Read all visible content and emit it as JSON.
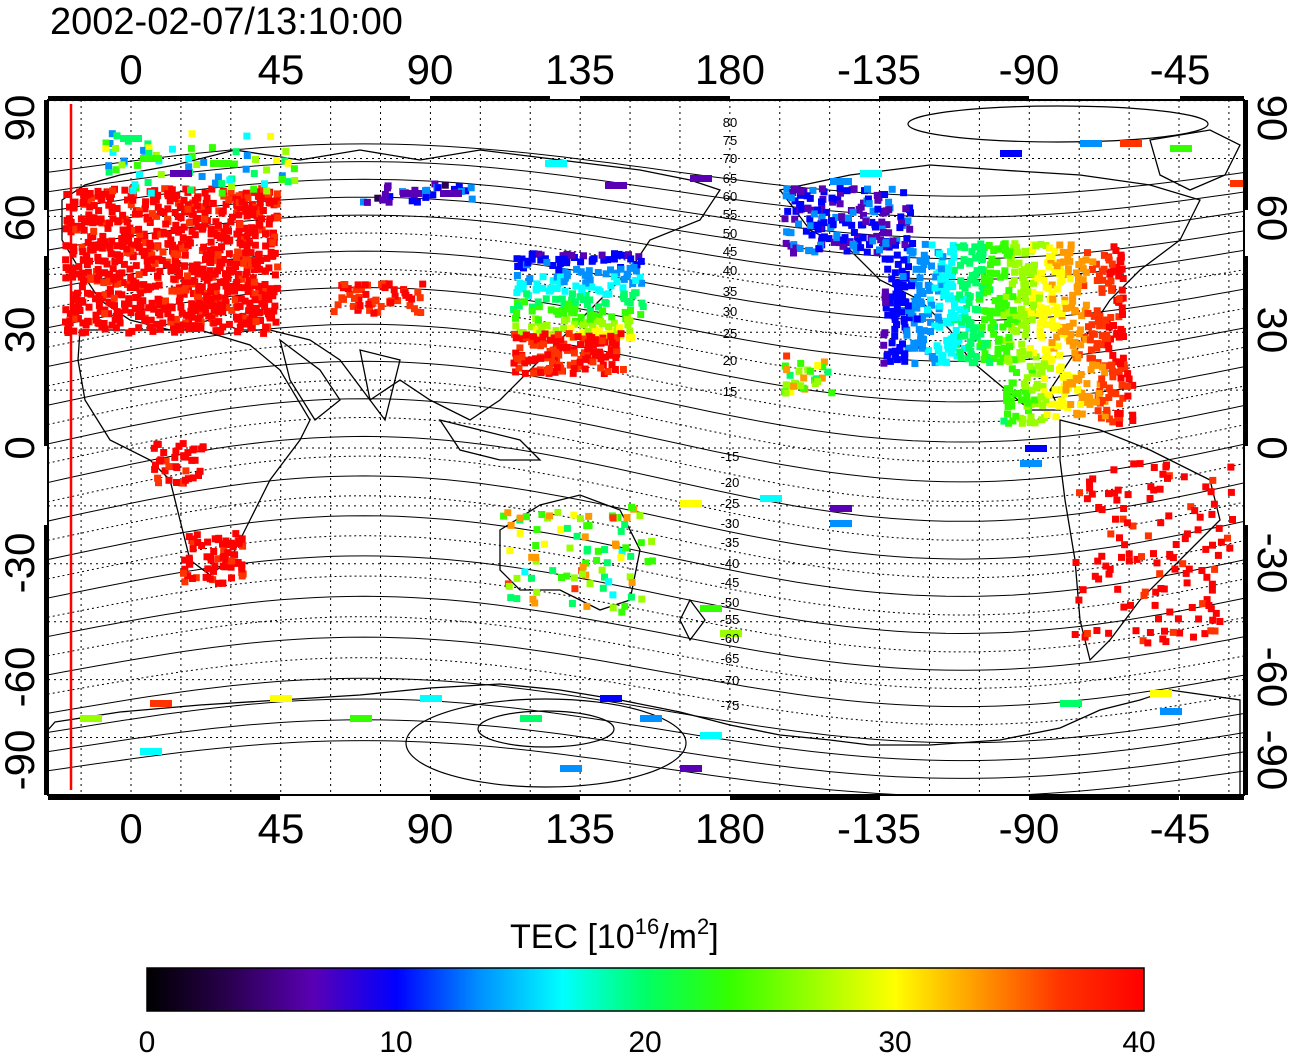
{
  "title": "2002-02-07/13:10:00",
  "map": {
    "x_axis": {
      "top_ticks": [
        "0",
        "45",
        "90",
        "135",
        "180",
        "-135",
        "-90",
        "-45"
      ],
      "bottom_ticks": [
        "0",
        "45",
        "90",
        "135",
        "180",
        "-135",
        "-90",
        "-45"
      ]
    },
    "y_axis": {
      "left_ticks": [
        "90",
        "60",
        "30",
        "0",
        "-30",
        "-60",
        "-90"
      ],
      "right_ticks": [
        "90",
        "60",
        "30",
        "0",
        "-30",
        "-60",
        "-90"
      ]
    },
    "contour_labels": [
      "80",
      "75",
      "70",
      "65",
      "60",
      "55",
      "50",
      "45",
      "40",
      "35",
      "30",
      "25",
      "20",
      "15",
      "-15",
      "-20",
      "-25",
      "-30",
      "-35",
      "-40",
      "-45",
      "-50",
      "-55",
      "-60",
      "-65",
      "-70",
      "-75"
    ],
    "grid": "dotted",
    "projection": "equirectangular",
    "longitude_center": 180
  },
  "colorbar": {
    "label_main": "TEC  [10",
    "label_sup1": "16",
    "label_mid": "/m",
    "label_sup2": "2",
    "label_end": "]",
    "ticks": [
      "0",
      "10",
      "20",
      "30",
      "40"
    ],
    "stops": [
      "#000000",
      "#2a0050",
      "#5a00b4",
      "#0000ff",
      "#0090ff",
      "#00ffff",
      "#00ff66",
      "#33ff00",
      "#99ff00",
      "#ffff00",
      "#ff9900",
      "#ff3300",
      "#ff0000"
    ]
  },
  "colors": {
    "land_outline": "#000000",
    "high_tec": "#ff0000",
    "sun_line": "#ff0000"
  }
}
